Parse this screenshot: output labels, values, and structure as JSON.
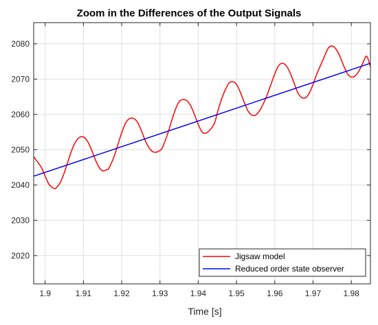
{
  "chart_data": {
    "type": "line",
    "title": "Zoom in the Differences of the Output Signals",
    "xlabel": "Time [s]",
    "ylabel": "",
    "xlim": [
      1.897,
      1.985
    ],
    "ylim": [
      2012,
      2086
    ],
    "x_ticks": [
      1.9,
      1.91,
      1.92,
      1.93,
      1.94,
      1.95,
      1.96,
      1.97,
      1.98
    ],
    "x_tick_labels": [
      "1.9",
      "1.91",
      "1.92",
      "1.93",
      "1.94",
      "1.95",
      "1.96",
      "1.97",
      "1.98"
    ],
    "y_ticks": [
      2020,
      2030,
      2040,
      2050,
      2060,
      2070,
      2080
    ],
    "y_tick_labels": [
      "2020",
      "2030",
      "2040",
      "2050",
      "2060",
      "2070",
      "2080"
    ],
    "grid": true,
    "legend_position": "bottom-right",
    "series": [
      {
        "name": "Jigsaw model",
        "color": "#ff0000",
        "x": [
          1.897,
          1.899,
          1.9,
          1.901,
          1.902,
          1.9025,
          1.903,
          1.904,
          1.905,
          1.906,
          1.907,
          1.908,
          1.909,
          1.91,
          1.911,
          1.912,
          1.913,
          1.914,
          1.915,
          1.916,
          1.9165,
          1.917,
          1.918,
          1.919,
          1.92,
          1.921,
          1.922,
          1.923,
          1.924,
          1.925,
          1.926,
          1.927,
          1.928,
          1.929,
          1.93,
          1.9305,
          1.931,
          1.932,
          1.933,
          1.934,
          1.935,
          1.936,
          1.937,
          1.938,
          1.939,
          1.94,
          1.941,
          1.942,
          1.943,
          1.944,
          1.9445,
          1.945,
          1.946,
          1.947,
          1.948,
          1.949,
          1.95,
          1.951,
          1.952,
          1.953,
          1.954,
          1.955,
          1.956,
          1.957,
          1.958,
          1.9585,
          1.959,
          1.96,
          1.961,
          1.962,
          1.963,
          1.964,
          1.965,
          1.966,
          1.967,
          1.968,
          1.969,
          1.97,
          1.971,
          1.972,
          1.9725,
          1.973,
          1.974,
          1.975,
          1.976,
          1.977,
          1.978,
          1.979,
          1.98,
          1.981,
          1.982,
          1.983,
          1.984,
          1.985
        ],
        "y": [
          2048.0,
          2045.0,
          2042.5,
          2040.2,
          2039.2,
          2039.0,
          2039.3,
          2040.8,
          2043.5,
          2046.8,
          2050.0,
          2052.3,
          2053.5,
          2053.6,
          2052.5,
          2050.3,
          2047.5,
          2045.2,
          2044.0,
          2044.3,
          2044.5,
          2045.5,
          2048.0,
          2051.4,
          2054.8,
          2057.5,
          2058.8,
          2058.9,
          2058.0,
          2055.8,
          2053.0,
          2050.8,
          2049.5,
          2049.3,
          2049.8,
          2050.3,
          2051.5,
          2054.5,
          2058.0,
          2061.3,
          2063.6,
          2064.2,
          2063.9,
          2062.5,
          2060.0,
          2057.2,
          2055.0,
          2054.7,
          2055.5,
          2057.0,
          2058.3,
          2060.5,
          2064.0,
          2066.8,
          2068.8,
          2069.3,
          2068.5,
          2066.3,
          2063.5,
          2061.0,
          2059.8,
          2059.8,
          2061.0,
          2063.0,
          2065.5,
          2067.0,
          2068.5,
          2071.5,
          2073.8,
          2074.5,
          2073.8,
          2071.8,
          2069.0,
          2066.2,
          2064.8,
          2064.7,
          2066.0,
          2068.5,
          2071.5,
          2074.0,
          2075.2,
          2076.5,
          2078.8,
          2079.4,
          2078.5,
          2076.5,
          2073.8,
          2071.5,
          2070.6,
          2070.9,
          2072.3,
          2074.5,
          2076.5,
          2073.5
        ]
      },
      {
        "name": "Reduced order state observer",
        "color": "#0000ff",
        "x": [
          1.897,
          1.985
        ],
        "y": [
          2042.5,
          2074.5
        ]
      }
    ]
  }
}
